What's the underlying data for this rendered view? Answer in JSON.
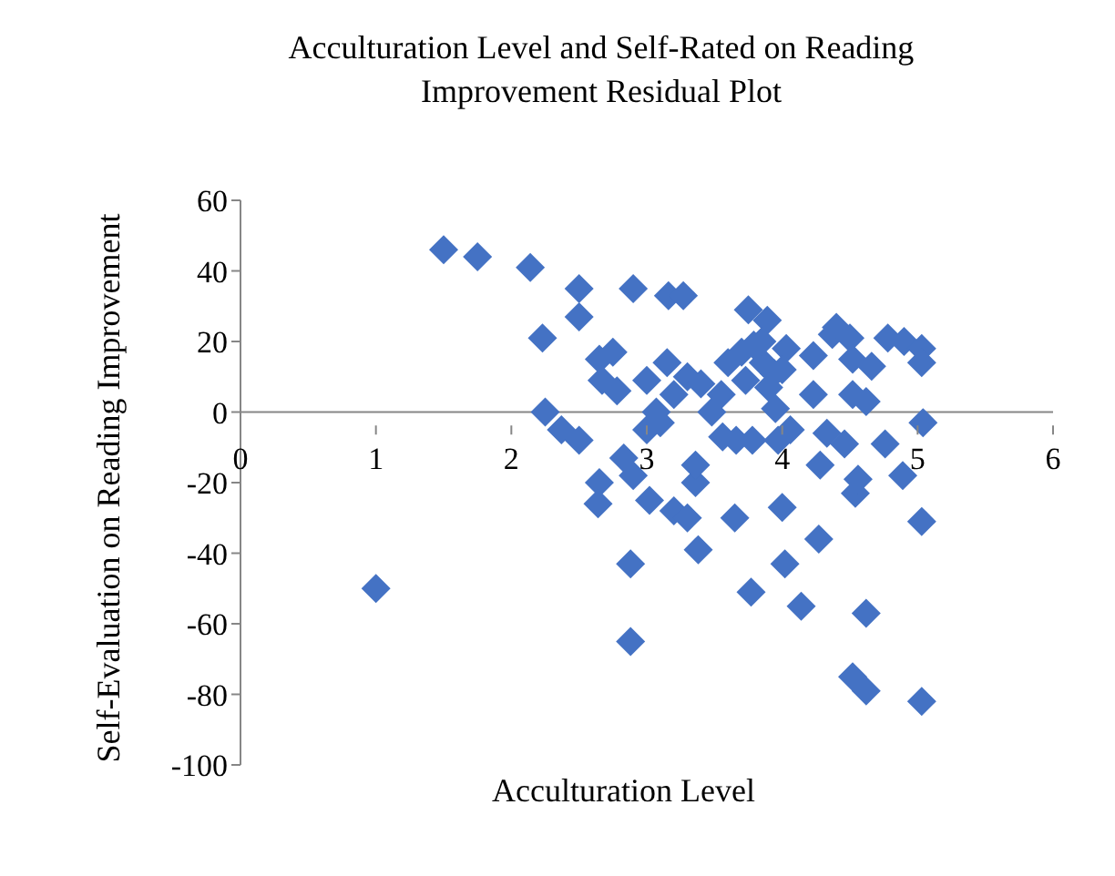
{
  "chart_data": {
    "type": "scatter",
    "title": "Acculturation Level and Self-Rated on Reading Improvement Residual Plot",
    "xlabel": "Acculturation Level",
    "ylabel": "Self-Evaluation on Reading Improvement",
    "xlim": [
      0,
      6
    ],
    "xticks": [
      0,
      1,
      2,
      3,
      4,
      5,
      6
    ],
    "ylim": [
      -100,
      60
    ],
    "yticks": [
      -100,
      -80,
      -60,
      -40,
      -20,
      0,
      20,
      40,
      60
    ],
    "grid": false,
    "legend": false,
    "marker": "diamond",
    "series": [
      {
        "color": "#4472c4",
        "x": [
          1,
          1.5,
          1.75,
          2.14,
          2.23,
          2.25,
          2.37,
          2.5,
          2.5,
          2.5,
          2.65,
          2.67,
          2.65,
          2.64,
          2.75,
          2.78,
          2.83,
          2.9,
          2.9,
          2.88,
          2.88,
          3,
          3.07,
          3.02,
          3.16,
          3.27,
          3.15,
          3.2,
          3.2,
          3.3,
          3.36,
          3.36,
          3.38,
          3.3,
          3.4,
          3.48,
          3.56,
          3.65,
          3.66,
          3.73,
          3.75,
          3.77,
          3.78,
          3.79,
          3.86,
          3.89,
          3.94,
          3.95,
          3.97,
          4.02,
          4,
          4.03,
          4.06,
          4.14,
          4.23,
          4.23,
          4.27,
          4.28,
          4.33,
          4.37,
          4.4,
          4.46,
          4.5,
          4.52,
          4.52,
          4.54,
          4.56,
          4.62,
          4.66,
          4.52,
          4.62,
          4.62,
          4.76,
          4.78,
          4.9,
          5.03,
          5.03,
          5.04,
          5.03,
          5.03,
          4.89,
          3,
          3.6,
          3.55,
          3.7,
          3.85,
          3.9,
          4.0,
          3.1
        ],
        "values": [
          -50,
          46,
          44,
          41,
          21,
          0,
          -5,
          -8,
          35,
          27,
          15,
          9,
          -20,
          -26,
          17,
          6,
          -13,
          -18,
          35,
          -43,
          -65,
          -5,
          0,
          -25,
          33,
          33,
          14,
          5,
          -28,
          -30,
          -20,
          -15,
          -39,
          10,
          8,
          0,
          -7,
          -30,
          -8,
          9,
          29,
          -51,
          -8,
          19,
          14,
          26,
          11,
          1,
          -8,
          -43,
          -27,
          18,
          -5,
          -55,
          5,
          16,
          -36,
          -15,
          -6,
          22,
          24,
          -9,
          21,
          15,
          5,
          -23,
          -19,
          3,
          13,
          -75,
          -79,
          -57,
          -9,
          21,
          20,
          18,
          14,
          -3,
          -31,
          -82,
          -18,
          9,
          14,
          5,
          17,
          20,
          7,
          12,
          -3
        ]
      }
    ]
  }
}
